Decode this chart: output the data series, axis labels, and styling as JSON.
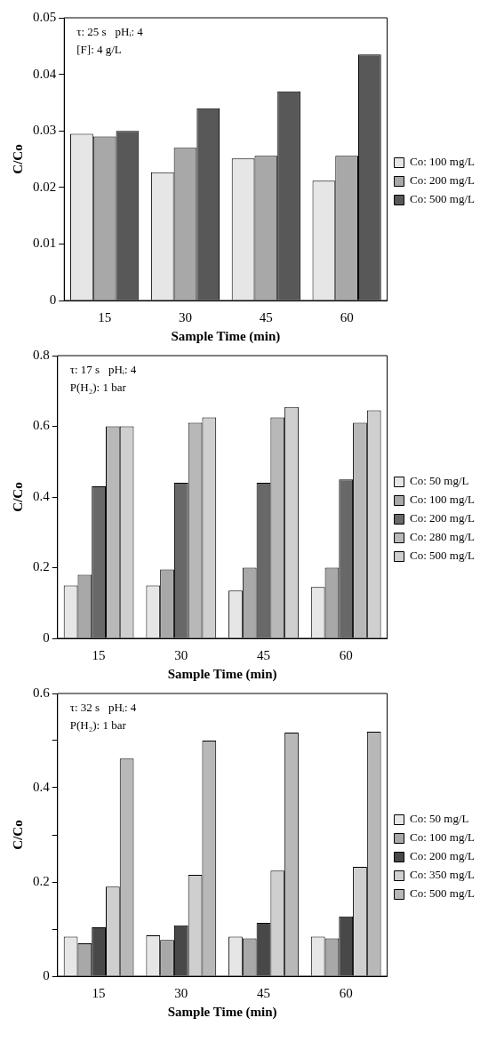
{
  "chart_data": [
    {
      "type": "bar",
      "categories": [
        "15",
        "30",
        "45",
        "60"
      ],
      "xlabel": "Sample Time (min)",
      "ylabel": "C/Co",
      "ylim": [
        0,
        0.05
      ],
      "yticks": [
        0,
        0.01,
        0.02,
        0.03,
        0.04,
        0.05
      ],
      "grid": false,
      "legend": "right",
      "annotations": [
        "τ: 25 s   pHᵢ: 4",
        "[F]: 4 g/L"
      ],
      "series": [
        {
          "name": "Co: 100 mg/L",
          "color": "#e6e6e6",
          "values": [
            0.0295,
            0.0227,
            0.0251,
            0.0212
          ]
        },
        {
          "name": "Co: 200 mg/L",
          "color": "#a8a8a8",
          "values": [
            0.029,
            0.027,
            0.0256,
            0.0256
          ]
        },
        {
          "name": "Co: 500 mg/L",
          "color": "#585858",
          "values": [
            0.03,
            0.034,
            0.037,
            0.0435
          ]
        }
      ]
    },
    {
      "type": "bar",
      "categories": [
        "15",
        "30",
        "45",
        "60"
      ],
      "xlabel": "Sample Time (min)",
      "ylabel": "C/Co",
      "ylim": [
        0,
        0.8
      ],
      "yticks": [
        0,
        0.2,
        0.4,
        0.6,
        0.8
      ],
      "grid": false,
      "legend": "right",
      "annotations": [
        "τ: 17 s   pHᵢ: 4",
        "P(H₂): 1 bar"
      ],
      "series": [
        {
          "name": "Co: 50 mg/L",
          "color": "#e6e6e6",
          "values": [
            0.15,
            0.15,
            0.135,
            0.145
          ]
        },
        {
          "name": "Co: 100 mg/L",
          "color": "#a8a8a8",
          "values": [
            0.18,
            0.195,
            0.2,
            0.2
          ]
        },
        {
          "name": "Co: 200 mg/L",
          "color": "#686868",
          "values": [
            0.43,
            0.44,
            0.44,
            0.45
          ]
        },
        {
          "name": "Co: 280 mg/L",
          "color": "#b8b8b8",
          "values": [
            0.6,
            0.61,
            0.625,
            0.61
          ]
        },
        {
          "name": "Co: 500 mg/L",
          "color": "#cfcfcf",
          "values": [
            0.6,
            0.625,
            0.655,
            0.645
          ]
        }
      ]
    },
    {
      "type": "bar",
      "categories": [
        "15",
        "30",
        "45",
        "60"
      ],
      "xlabel": "Sample Time (min)",
      "ylabel": "C/Co",
      "ylim": [
        0,
        0.6
      ],
      "yticks": [
        0,
        {
          "value": 0.1,
          "label": null
        },
        0.2,
        {
          "value": 0.3,
          "label": null
        },
        0.4,
        {
          "value": 0.5,
          "label": null
        },
        0.6
      ],
      "grid": false,
      "legend": "right",
      "annotations": [
        "τ: 32 s   pHᵢ: 4",
        "P(H₂): 1 bar"
      ],
      "series": [
        {
          "name": "Co: 50 mg/L",
          "color": "#e6e6e6",
          "values": [
            0.084,
            0.087,
            0.084,
            0.084
          ]
        },
        {
          "name": "Co: 100 mg/L",
          "color": "#a8a8a8",
          "values": [
            0.07,
            0.077,
            0.08,
            0.08
          ]
        },
        {
          "name": "Co: 200 mg/L",
          "color": "#484848",
          "values": [
            0.104,
            0.108,
            0.113,
            0.127
          ]
        },
        {
          "name": "Co: 350 mg/L",
          "color": "#cfcfcf",
          "values": [
            0.19,
            0.215,
            0.224,
            0.232
          ]
        },
        {
          "name": "Co: 500 mg/L",
          "color": "#b8b8b8",
          "values": [
            0.462,
            0.5,
            0.517,
            0.519
          ]
        }
      ]
    }
  ]
}
